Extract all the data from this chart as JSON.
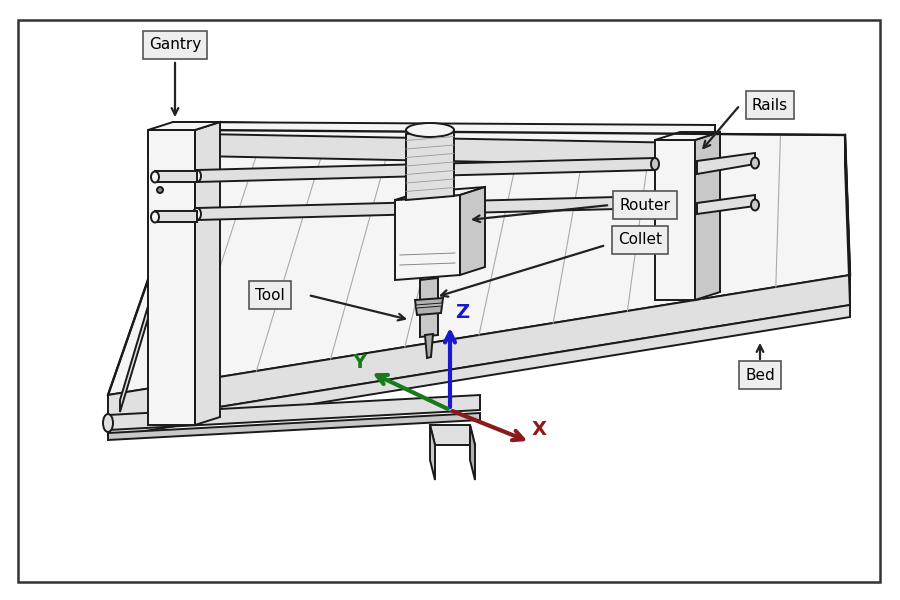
{
  "bg_color": "#ffffff",
  "line_color": "#1a1a1a",
  "labels": {
    "gantry": "Gantry",
    "rails": "Rails",
    "router": "Router",
    "collet": "Collet",
    "tool": "Tool",
    "bed": "Bed",
    "x": "X",
    "y": "Y",
    "z": "Z"
  },
  "axis_colors": {
    "x": "#8B1A1A",
    "y": "#1a7a1a",
    "z": "#1a1aCC"
  },
  "face_light": "#f5f5f5",
  "face_mid": "#e0e0e0",
  "face_dark": "#c8c8c8",
  "face_darker": "#b0b0b0"
}
